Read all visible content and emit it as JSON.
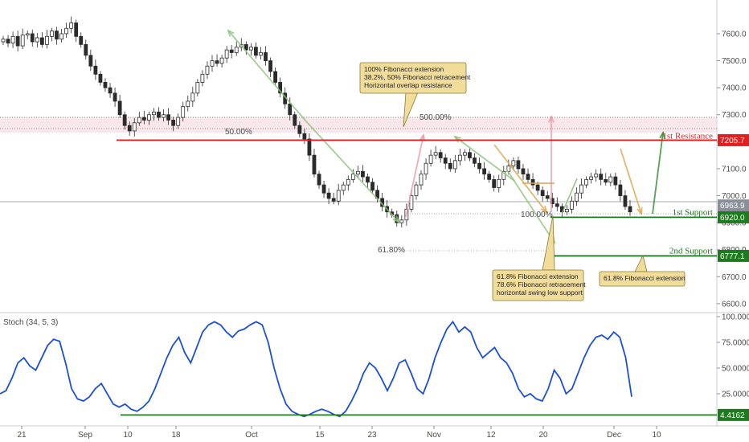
{
  "chart_data": {
    "type": "candlestick",
    "instrument_note": "",
    "price_axis": {
      "ticks": [
        "7600.0",
        "7500.0",
        "7400.0",
        "7300.0",
        "7200.0",
        "7100.0",
        "7000.0",
        "6900.0",
        "6800.0",
        "6700.0",
        "6600.0"
      ],
      "range": [
        6570,
        7710
      ]
    },
    "time_axis": {
      "ticks": [
        "21",
        "Sep",
        "10",
        "18",
        "Oct",
        "15",
        "23",
        "Nov",
        "12",
        "20",
        "Dec",
        "10"
      ]
    },
    "levels": {
      "resistance_1": {
        "label": "1st Resistance",
        "value": "7205.7",
        "color": "#e02020"
      },
      "support_1": {
        "label": "1st Support",
        "value": "6920.0",
        "color": "#1e7a1e"
      },
      "support_2": {
        "label": "2nd Support",
        "value": "6777.1",
        "color": "#1e7a1e"
      },
      "current_price": {
        "value": "6963.9",
        "color": "#8a8f9a"
      }
    },
    "fib_labels": {
      "a": "50.00%",
      "b": "500.00%",
      "c": "100.00%",
      "d": "61.80%"
    },
    "annotations": {
      "resistance_note": [
        "100% Fibonacci extension",
        "38.2%, 50% Fibonacci retracement",
        "Horizontal overlap resistance"
      ],
      "support1_note": [
        "61.8% Fibonacci extension",
        "78.6% Fibonacci retracement",
        "horizontal swing low support"
      ],
      "support2_note": [
        "61.8% Fibonacci extension"
      ]
    },
    "candles": [
      7580,
      7565,
      7590,
      7555,
      7595,
      7600,
      7570,
      7585,
      7560,
      7590,
      7610,
      7580,
      7600,
      7620,
      7640,
      7590,
      7560,
      7520,
      7480,
      7450,
      7420,
      7400,
      7380,
      7350,
      7300,
      7260,
      7240,
      7270,
      7290,
      7280,
      7300,
      7310,
      7290,
      7300,
      7280,
      7260,
      7290,
      7330,
      7350,
      7380,
      7420,
      7450,
      7480,
      7500,
      7490,
      7510,
      7540,
      7530,
      7550,
      7560,
      7540,
      7550,
      7520,
      7530,
      7500,
      7460,
      7420,
      7380,
      7340,
      7300,
      7260,
      7230,
      7210,
      7150,
      7080,
      7040,
      7010,
      6990,
      6980,
      7020,
      7040,
      7060,
      7080,
      7090,
      7070,
      7050,
      7020,
      6990,
      6960,
      6940,
      6930,
      6900,
      6910,
      6950,
      7000,
      7040,
      7080,
      7120,
      7150,
      7160,
      7140,
      7120,
      7100,
      7130,
      7150,
      7160,
      7140,
      7120,
      7100,
      7080,
      7060,
      7030,
      7060,
      7090,
      7110,
      7130,
      7100,
      7080,
      7060,
      7040,
      7020,
      7000,
      6990,
      6970,
      6960,
      6940,
      6950,
      6980,
      7010,
      7040,
      7060,
      7070,
      7080,
      7060,
      7050,
      7070,
      7040,
      7000,
      6960,
      6940
    ],
    "stochastic": {
      "label": "Stoch (34, 5, 3)",
      "current": "4.4162",
      "ticks": [
        "100.0000",
        "75.0000",
        "50.0000",
        "25.0000"
      ],
      "range": [
        0,
        100
      ],
      "values": [
        25,
        28,
        40,
        55,
        60,
        52,
        48,
        60,
        72,
        78,
        76,
        55,
        30,
        20,
        18,
        22,
        30,
        35,
        25,
        15,
        12,
        15,
        10,
        8,
        12,
        18,
        30,
        45,
        60,
        72,
        80,
        65,
        55,
        70,
        85,
        92,
        95,
        92,
        85,
        80,
        86,
        88,
        92,
        95,
        92,
        75,
        50,
        30,
        15,
        8,
        5,
        3,
        5,
        8,
        10,
        8,
        5,
        3,
        8,
        18,
        30,
        45,
        55,
        50,
        40,
        28,
        40,
        55,
        58,
        45,
        30,
        25,
        40,
        60,
        75,
        88,
        95,
        85,
        90,
        85,
        70,
        60,
        65,
        70,
        60,
        55,
        45,
        30,
        22,
        25,
        20,
        18,
        30,
        48,
        40,
        25,
        30,
        45,
        60,
        72,
        80,
        82,
        78,
        85,
        80,
        60,
        22
      ]
    }
  }
}
